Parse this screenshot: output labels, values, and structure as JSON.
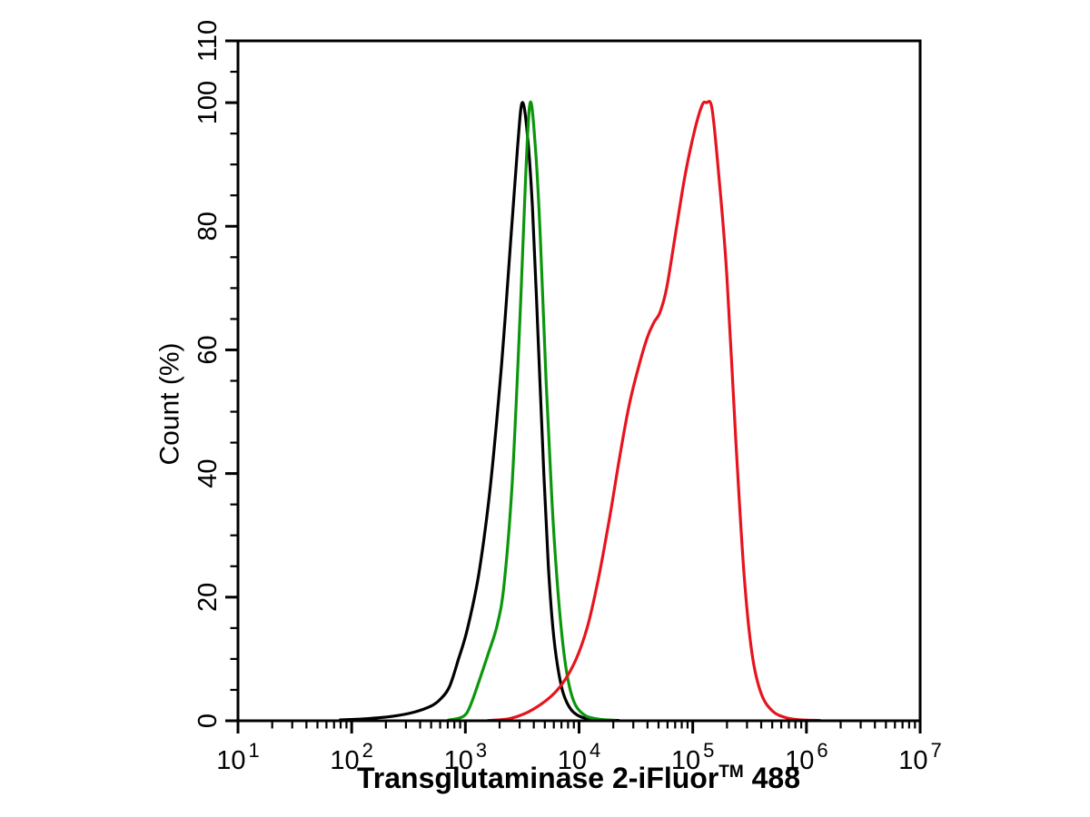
{
  "page": {
    "background": "#ffffff",
    "text_color": "#000000"
  },
  "chart_data": {
    "type": "line",
    "title": "",
    "xlabel": "Transglutaminase 2-iFluor™ 488",
    "ylabel": "Count (%)",
    "x_scale": "log10",
    "xlim_log10": [
      1,
      7
    ],
    "ylim": [
      0,
      110
    ],
    "x_tick_base": "10",
    "x_tick_exponents": [
      1,
      2,
      3,
      4,
      5,
      6,
      7
    ],
    "x_minor_ticks_per_decade": [
      2,
      3,
      4,
      5,
      6,
      7,
      8,
      9
    ],
    "y_major_ticks": [
      0,
      20,
      40,
      60,
      80,
      100,
      110
    ],
    "y_minor_step": 5,
    "grid": false,
    "legend": null,
    "frame": "box",
    "axis_color": "#000000",
    "series": [
      {
        "name": "black",
        "color": "#000000",
        "peak_log10_x": 3.5,
        "peak_percent": 100,
        "points": [
          [
            1.9,
            0.15
          ],
          [
            2.1,
            0.3
          ],
          [
            2.35,
            0.7
          ],
          [
            2.55,
            1.4
          ],
          [
            2.7,
            2.4
          ],
          [
            2.78,
            3.5
          ],
          [
            2.86,
            5.5
          ],
          [
            2.94,
            10.0
          ],
          [
            3.02,
            15.0
          ],
          [
            3.12,
            24.0
          ],
          [
            3.22,
            38.0
          ],
          [
            3.32,
            58.0
          ],
          [
            3.4,
            78.0
          ],
          [
            3.46,
            93.0
          ],
          [
            3.5,
            100.0
          ],
          [
            3.545,
            95.0
          ],
          [
            3.59,
            83.0
          ],
          [
            3.64,
            62.0
          ],
          [
            3.69,
            40.0
          ],
          [
            3.73,
            25.0
          ],
          [
            3.77,
            15.0
          ],
          [
            3.81,
            9.0
          ],
          [
            3.86,
            4.5
          ],
          [
            3.93,
            1.8
          ],
          [
            4.02,
            0.6
          ],
          [
            4.15,
            0.2
          ],
          [
            4.35,
            0.05
          ]
        ]
      },
      {
        "name": "green",
        "color": "#0c960c",
        "peak_log10_x": 3.57,
        "peak_percent": 100,
        "points": [
          [
            2.85,
            0.1
          ],
          [
            2.95,
            0.45
          ],
          [
            3.01,
            1.2
          ],
          [
            3.06,
            3.2
          ],
          [
            3.12,
            6.4
          ],
          [
            3.2,
            10.8
          ],
          [
            3.28,
            15.5
          ],
          [
            3.34,
            22.0
          ],
          [
            3.41,
            38.0
          ],
          [
            3.48,
            65.0
          ],
          [
            3.53,
            88.0
          ],
          [
            3.57,
            100.0
          ],
          [
            3.615,
            93.0
          ],
          [
            3.66,
            78.0
          ],
          [
            3.71,
            55.0
          ],
          [
            3.76,
            36.0
          ],
          [
            3.81,
            22.0
          ],
          [
            3.86,
            12.0
          ],
          [
            3.91,
            6.0
          ],
          [
            3.97,
            2.5
          ],
          [
            4.06,
            0.8
          ],
          [
            4.18,
            0.25
          ],
          [
            4.32,
            0.05
          ]
        ]
      },
      {
        "name": "red",
        "color": "#e6141e",
        "peak_log10_x": 5.12,
        "peak_percent": 100,
        "points": [
          [
            3.2,
            0.05
          ],
          [
            3.4,
            0.4
          ],
          [
            3.6,
            1.9
          ],
          [
            3.8,
            4.8
          ],
          [
            3.95,
            9.0
          ],
          [
            4.07,
            15.0
          ],
          [
            4.17,
            23.0
          ],
          [
            4.27,
            33.0
          ],
          [
            4.36,
            43.0
          ],
          [
            4.44,
            51.0
          ],
          [
            4.52,
            57.0
          ],
          [
            4.6,
            62.0
          ],
          [
            4.66,
            64.5
          ],
          [
            4.71,
            66.0
          ],
          [
            4.77,
            70.0
          ],
          [
            4.85,
            79.0
          ],
          [
            4.93,
            88.0
          ],
          [
            5.01,
            95.0
          ],
          [
            5.08,
            99.5
          ],
          [
            5.12,
            100.0
          ],
          [
            5.17,
            99.0
          ],
          [
            5.23,
            88.0
          ],
          [
            5.3,
            72.0
          ],
          [
            5.38,
            45.0
          ],
          [
            5.45,
            24.0
          ],
          [
            5.52,
            11.0
          ],
          [
            5.6,
            4.5
          ],
          [
            5.7,
            1.6
          ],
          [
            5.82,
            0.5
          ],
          [
            5.95,
            0.15
          ],
          [
            6.12,
            0.05
          ]
        ]
      }
    ]
  }
}
